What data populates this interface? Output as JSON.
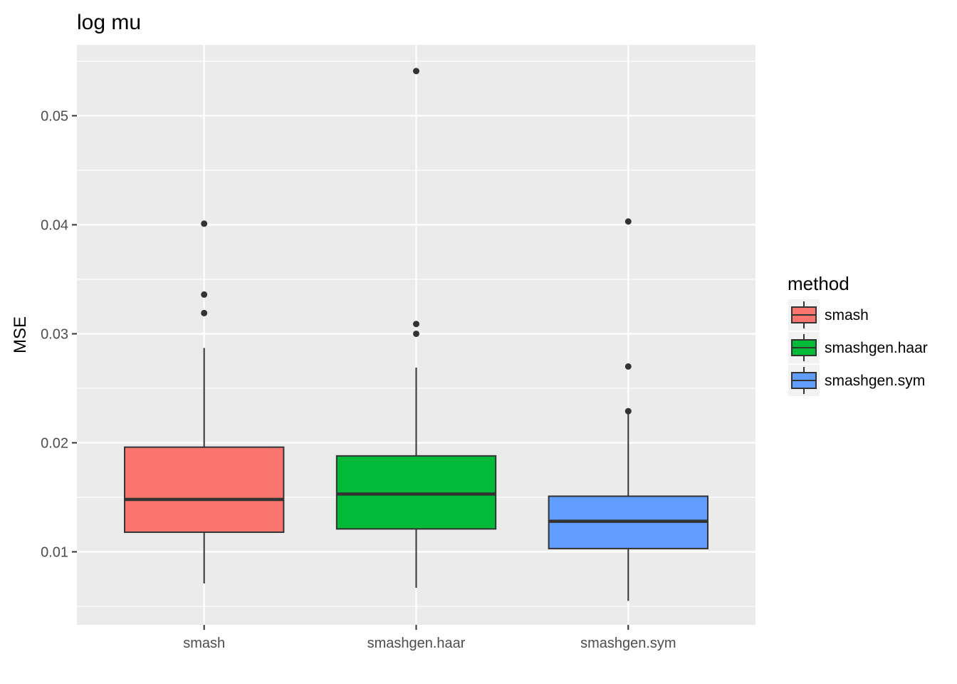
{
  "chart_data": {
    "type": "boxplot",
    "title": "log mu",
    "xlabel": "",
    "ylabel": "MSE",
    "ylim": [
      0.0033,
      0.0565
    ],
    "y_ticks": [
      0.01,
      0.02,
      0.03,
      0.04,
      0.05
    ],
    "y_tick_labels": [
      "0.01",
      "0.02",
      "0.03",
      "0.04",
      "0.05"
    ],
    "y_minor_ticks": [
      0.005,
      0.015,
      0.025,
      0.035,
      0.045,
      0.055
    ],
    "categories": [
      "smash",
      "smashgen.haar",
      "smashgen.sym"
    ],
    "legend": {
      "title": "method",
      "position": "right",
      "entries": [
        "smash",
        "smashgen.haar",
        "smashgen.sym"
      ]
    },
    "grid": true,
    "series": [
      {
        "category": "smash",
        "color": "#F8766D",
        "whisker_low": 0.0071,
        "q1": 0.0118,
        "median": 0.0148,
        "q3": 0.0196,
        "whisker_high": 0.0287,
        "outliers": [
          0.0319,
          0.0336,
          0.0401
        ]
      },
      {
        "category": "smashgen.haar",
        "color": "#00BA38",
        "whisker_low": 0.0067,
        "q1": 0.0121,
        "median": 0.0153,
        "q3": 0.0188,
        "whisker_high": 0.0269,
        "outliers": [
          0.03,
          0.0309,
          0.0541
        ]
      },
      {
        "category": "smashgen.sym",
        "color": "#619CFF",
        "whisker_low": 0.0055,
        "q1": 0.0103,
        "median": 0.0128,
        "q3": 0.0151,
        "whisker_high": 0.0227,
        "outliers": [
          0.0229,
          0.027,
          0.0403
        ]
      }
    ]
  }
}
